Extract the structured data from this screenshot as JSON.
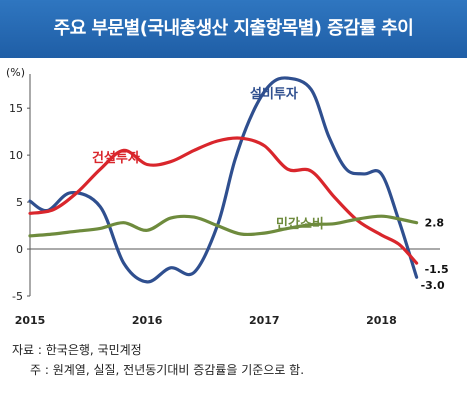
{
  "title": "주요 부문별(국내총생산 지출항목별) 증감률 추이",
  "source_note": "자료 : 한국은행, 국민계정",
  "method_note": "주 : 원계열, 실질, 전년동기대비 증감률을 기준으로 함.",
  "chart_data": {
    "type": "line",
    "title": "주요 부문별(국내총생산 지출항목별) 증감률 추이",
    "ylabel": "(%)",
    "xlabel": "",
    "ylim": [
      -5,
      18
    ],
    "xlim": [
      2015,
      2018.5
    ],
    "y_ticks": [
      "15",
      "10",
      "5",
      "0",
      "-5"
    ],
    "x_ticks": [
      "2015",
      "2016",
      "2017",
      "2018"
    ],
    "grid": false,
    "series": [
      {
        "name": "설비투자",
        "color": "#2f4f8f",
        "x": [
          2015.0,
          2015.15,
          2015.35,
          2015.6,
          2015.8,
          2016.0,
          2016.2,
          2016.4,
          2016.6,
          2016.75,
          2016.9,
          2017.05,
          2017.2,
          2017.4,
          2017.55,
          2017.7,
          2017.85,
          2018.0,
          2018.15,
          2018.3
        ],
        "y": [
          5.1,
          4.1,
          6.0,
          4.5,
          -1.5,
          -3.5,
          -2.0,
          -2.5,
          2.5,
          9.5,
          14.5,
          17.5,
          18.2,
          17.0,
          12.0,
          8.5,
          8.0,
          8.0,
          3.0,
          -3.0
        ],
        "end_label": "-3.0"
      },
      {
        "name": "건설투자",
        "color": "#d9262c",
        "x": [
          2015.0,
          2015.2,
          2015.4,
          2015.6,
          2015.8,
          2016.0,
          2016.2,
          2016.4,
          2016.6,
          2016.8,
          2017.0,
          2017.2,
          2017.4,
          2017.6,
          2017.8,
          2018.0,
          2018.15,
          2018.3
        ],
        "y": [
          3.8,
          4.2,
          6.0,
          8.5,
          10.5,
          9.0,
          9.3,
          10.5,
          11.5,
          11.8,
          11.0,
          8.5,
          8.3,
          5.5,
          3.0,
          1.5,
          0.5,
          -1.5
        ],
        "end_label": "-1.5"
      },
      {
        "name": "민간소비",
        "color": "#6e8b3d",
        "x": [
          2015.0,
          2015.2,
          2015.4,
          2015.6,
          2015.8,
          2016.0,
          2016.2,
          2016.4,
          2016.6,
          2016.8,
          2017.0,
          2017.2,
          2017.4,
          2017.6,
          2017.8,
          2018.0,
          2018.15,
          2018.3
        ],
        "y": [
          1.4,
          1.6,
          1.9,
          2.2,
          2.8,
          2.0,
          3.3,
          3.4,
          2.5,
          1.6,
          1.7,
          2.2,
          2.6,
          2.7,
          3.2,
          3.5,
          3.2,
          2.8
        ],
        "end_label": "2.8"
      }
    ]
  }
}
